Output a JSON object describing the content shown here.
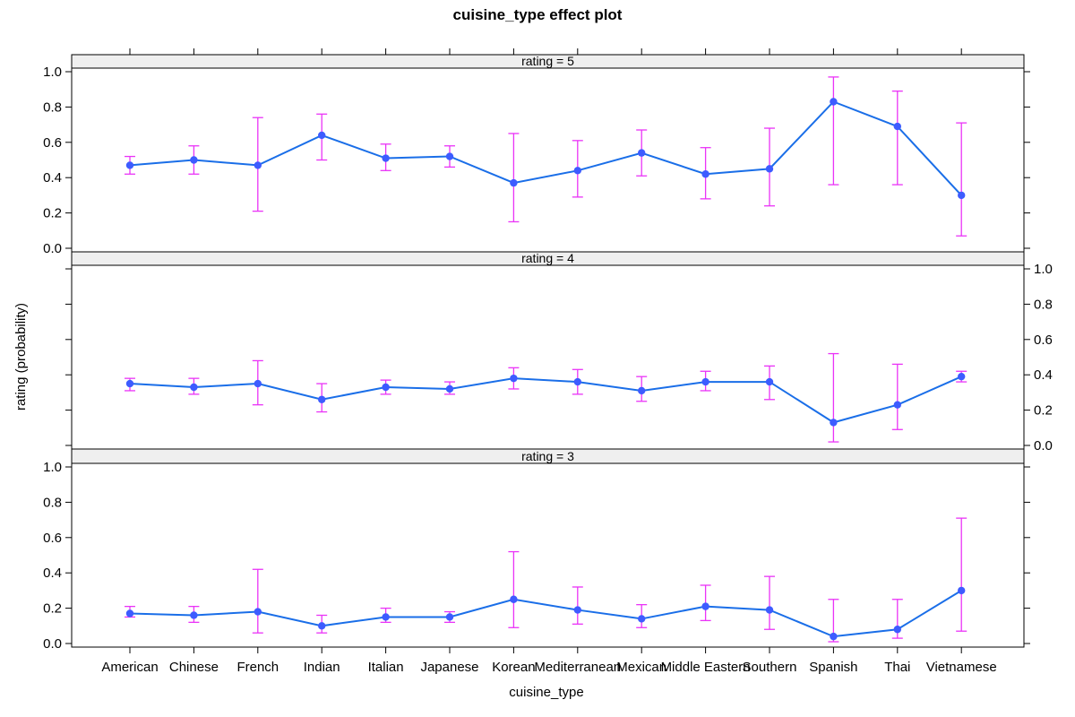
{
  "chart_data": {
    "type": "line",
    "title": "cuisine_type effect plot",
    "xlabel": "cuisine_type",
    "ylabel": "rating (probability)",
    "categories": [
      "American",
      "Chinese",
      "French",
      "Indian",
      "Italian",
      "Japanese",
      "Korean",
      "Mediterranean",
      "Mexican",
      "Middle Eastern",
      "Southern",
      "Spanish",
      "Thai",
      "Vietnamese"
    ],
    "ylim": [
      0,
      1
    ],
    "yticks": [
      "0.0",
      "0.2",
      "0.4",
      "0.6",
      "0.8",
      "1.0"
    ],
    "grid": false,
    "colors": {
      "line": "#1a6ee8",
      "point": "#3d5cff",
      "error_bar": "#ea33f7",
      "strip": "#efefef"
    },
    "panels": [
      {
        "strip_label": "rating = 5",
        "estimate": [
          0.47,
          0.5,
          0.47,
          0.64,
          0.51,
          0.52,
          0.37,
          0.44,
          0.54,
          0.42,
          0.45,
          0.83,
          0.69,
          0.3
        ],
        "lower": [
          0.42,
          0.42,
          0.21,
          0.5,
          0.44,
          0.46,
          0.15,
          0.29,
          0.41,
          0.28,
          0.24,
          0.36,
          0.36,
          0.07
        ],
        "upper": [
          0.52,
          0.58,
          0.74,
          0.76,
          0.59,
          0.58,
          0.65,
          0.61,
          0.67,
          0.57,
          0.68,
          0.97,
          0.89,
          0.71
        ]
      },
      {
        "strip_label": "rating = 4",
        "estimate": [
          0.35,
          0.33,
          0.35,
          0.26,
          0.33,
          0.32,
          0.38,
          0.36,
          0.31,
          0.36,
          0.36,
          0.13,
          0.23,
          0.39
        ],
        "lower": [
          0.31,
          0.29,
          0.23,
          0.19,
          0.29,
          0.29,
          0.32,
          0.29,
          0.25,
          0.31,
          0.26,
          0.02,
          0.09,
          0.36
        ],
        "upper": [
          0.38,
          0.38,
          0.48,
          0.35,
          0.37,
          0.36,
          0.44,
          0.43,
          0.39,
          0.42,
          0.45,
          0.52,
          0.46,
          0.42
        ]
      },
      {
        "strip_label": "rating = 3",
        "estimate": [
          0.17,
          0.16,
          0.18,
          0.1,
          0.15,
          0.15,
          0.25,
          0.19,
          0.14,
          0.21,
          0.19,
          0.04,
          0.08,
          0.3
        ],
        "lower": [
          0.15,
          0.12,
          0.06,
          0.06,
          0.12,
          0.12,
          0.09,
          0.11,
          0.09,
          0.13,
          0.08,
          0.01,
          0.03,
          0.07
        ],
        "upper": [
          0.21,
          0.21,
          0.42,
          0.16,
          0.2,
          0.18,
          0.52,
          0.32,
          0.22,
          0.33,
          0.38,
          0.25,
          0.25,
          0.71
        ]
      }
    ]
  }
}
